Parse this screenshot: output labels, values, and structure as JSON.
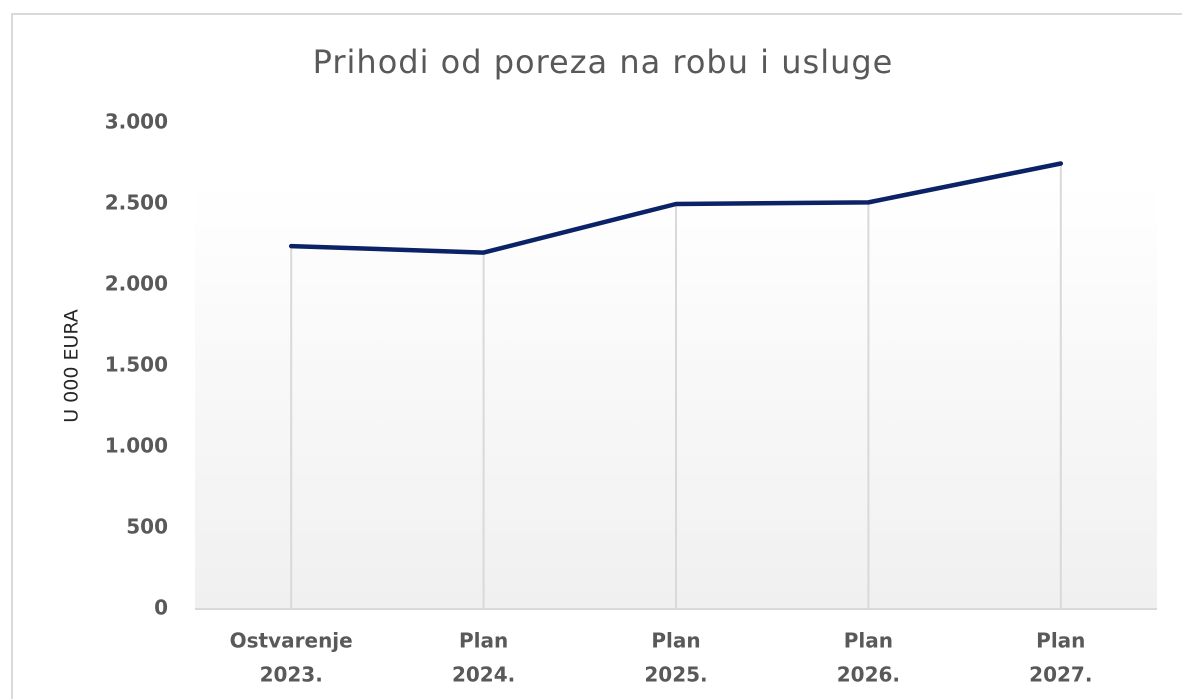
{
  "chart_data": {
    "type": "line",
    "title": "Prihodi od poreza na robu i usluge",
    "y_label": "U 000 EURA",
    "categories": [
      [
        "Ostvarenje",
        "2023."
      ],
      [
        "Plan",
        "2024."
      ],
      [
        "Plan",
        "2025."
      ],
      [
        "Plan",
        "2026."
      ],
      [
        "Plan",
        "2027."
      ]
    ],
    "series": [
      {
        "name": "Prihodi",
        "color": "#0b2266",
        "values": [
          2240,
          2200,
          2500,
          2510,
          2750
        ]
      }
    ],
    "ylim": [
      0,
      3000
    ],
    "yticks": [
      0,
      500,
      {
        "value": 1000,
        "label": "1.000"
      },
      {
        "value": 1500,
        "label": "1.500"
      },
      {
        "value": 2000,
        "label": "2.000"
      },
      {
        "value": 2500,
        "label": "2.500"
      },
      {
        "value": 3000,
        "label": "3.000"
      }
    ],
    "drop_lines": true
  }
}
